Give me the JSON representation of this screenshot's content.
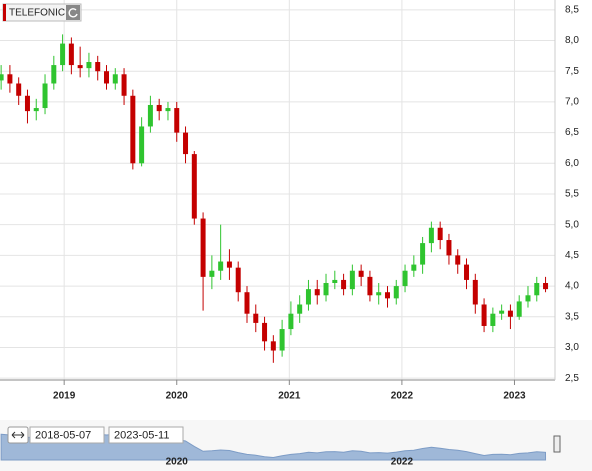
{
  "chart_data": {
    "type": "candlestick",
    "title": "TELEFONIC",
    "x": [
      2018.44,
      2018.518,
      2018.596,
      2018.674,
      2018.752,
      2018.83,
      2018.908,
      2018.986,
      2019.064,
      2019.142,
      2019.22,
      2019.298,
      2019.376,
      2019.454,
      2019.532,
      2019.61,
      2019.688,
      2019.766,
      2019.844,
      2019.922,
      2020.0,
      2020.078,
      2020.156,
      2020.234,
      2020.312,
      2020.39,
      2020.468,
      2020.546,
      2020.624,
      2020.702,
      2020.78,
      2020.858,
      2020.936,
      2021.014,
      2021.092,
      2021.17,
      2021.248,
      2021.326,
      2021.404,
      2021.482,
      2021.56,
      2021.638,
      2021.716,
      2021.794,
      2021.872,
      2021.95,
      2022.028,
      2022.106,
      2022.184,
      2022.262,
      2022.34,
      2022.418,
      2022.496,
      2022.574,
      2022.652,
      2022.73,
      2022.808,
      2022.886,
      2022.964,
      2023.042,
      2023.12,
      2023.198,
      2023.276
    ],
    "open": [
      7.35,
      7.45,
      7.3,
      7.1,
      6.85,
      6.9,
      7.3,
      7.6,
      7.95,
      7.6,
      7.55,
      7.65,
      7.5,
      7.3,
      7.45,
      7.1,
      6.0,
      6.6,
      6.95,
      6.85,
      6.9,
      6.5,
      6.15,
      5.1,
      4.15,
      4.25,
      4.4,
      4.3,
      3.9,
      3.55,
      3.4,
      3.1,
      2.95,
      3.3,
      3.55,
      3.7,
      3.95,
      3.85,
      4.05,
      4.1,
      3.95,
      4.25,
      4.15,
      3.85,
      3.9,
      3.8,
      4.0,
      4.25,
      4.35,
      4.7,
      4.95,
      4.75,
      4.5,
      4.35,
      4.1,
      3.7,
      3.35,
      3.55,
      3.6,
      3.5,
      3.75,
      3.85,
      4.05
    ],
    "high": [
      7.6,
      7.6,
      7.4,
      7.2,
      7.05,
      7.45,
      7.75,
      8.1,
      8.05,
      7.9,
      7.8,
      7.75,
      7.6,
      7.55,
      7.55,
      7.2,
      6.75,
      7.1,
      7.05,
      7.0,
      7.0,
      6.6,
      6.2,
      5.2,
      4.5,
      5.0,
      4.6,
      4.4,
      4.0,
      3.7,
      3.5,
      3.2,
      3.45,
      3.75,
      3.85,
      4.1,
      4.1,
      4.2,
      4.25,
      4.2,
      4.35,
      4.35,
      4.25,
      4.05,
      4.0,
      4.1,
      4.35,
      4.5,
      4.8,
      5.05,
      5.05,
      4.85,
      4.6,
      4.45,
      4.2,
      3.8,
      3.65,
      3.7,
      3.7,
      3.85,
      4.0,
      4.15,
      4.15
    ],
    "low": [
      7.2,
      7.15,
      6.95,
      6.65,
      6.7,
      6.8,
      7.2,
      7.5,
      7.45,
      7.4,
      7.4,
      7.35,
      7.2,
      7.2,
      6.95,
      5.9,
      5.95,
      6.5,
      6.7,
      6.7,
      6.35,
      6.0,
      5.0,
      3.6,
      3.95,
      4.1,
      4.1,
      3.75,
      3.4,
      3.25,
      2.95,
      2.75,
      2.85,
      3.2,
      3.4,
      3.6,
      3.7,
      3.75,
      3.95,
      3.85,
      3.85,
      4.0,
      3.75,
      3.7,
      3.65,
      3.7,
      3.9,
      4.15,
      4.2,
      4.55,
      4.6,
      4.35,
      4.2,
      3.95,
      3.55,
      3.25,
      3.25,
      3.45,
      3.3,
      3.45,
      3.65,
      3.75,
      3.9
    ],
    "close": [
      7.45,
      7.3,
      7.1,
      6.85,
      6.9,
      7.3,
      7.6,
      7.95,
      7.6,
      7.55,
      7.65,
      7.5,
      7.3,
      7.45,
      7.1,
      6.0,
      6.6,
      6.95,
      6.85,
      6.9,
      6.5,
      6.15,
      5.1,
      4.15,
      4.25,
      4.4,
      4.3,
      3.9,
      3.55,
      3.4,
      3.1,
      2.95,
      3.3,
      3.55,
      3.7,
      3.95,
      3.85,
      4.05,
      4.1,
      3.95,
      4.25,
      4.15,
      3.85,
      3.9,
      3.8,
      4.0,
      4.25,
      4.35,
      4.7,
      4.95,
      4.75,
      4.5,
      4.35,
      4.1,
      3.7,
      3.35,
      3.55,
      3.6,
      3.5,
      3.75,
      3.85,
      4.05,
      3.95
    ],
    "up_color": "#2fc42f",
    "down_color": "#c40000",
    "xlim": [
      2018.43,
      2023.36
    ],
    "xticks": [
      2019,
      2020,
      2021,
      2022,
      2023
    ],
    "ylim": [
      2.47,
      8.66
    ],
    "yticks": [
      {
        "value": 2.5,
        "label": "2,5"
      },
      {
        "value": 3.0,
        "label": "3,0"
      },
      {
        "value": 3.5,
        "label": "3,5"
      },
      {
        "value": 4.0,
        "label": "4,0"
      },
      {
        "value": 4.5,
        "label": "4,5"
      },
      {
        "value": 5.0,
        "label": "5,0"
      },
      {
        "value": 5.5,
        "label": "5,5"
      },
      {
        "value": 6.0,
        "label": "6,0"
      },
      {
        "value": 6.5,
        "label": "6,5"
      },
      {
        "value": 7.0,
        "label": "7,0"
      },
      {
        "value": 7.5,
        "label": "7,5"
      },
      {
        "value": 8.0,
        "label": "8,0"
      },
      {
        "value": 8.5,
        "label": "8,5"
      }
    ],
    "grid": true,
    "navigator": {
      "from": "2018-05-07",
      "to": "2023-05-11",
      "xticks": [
        2020,
        2022
      ],
      "color": "#9fb8d8"
    }
  }
}
